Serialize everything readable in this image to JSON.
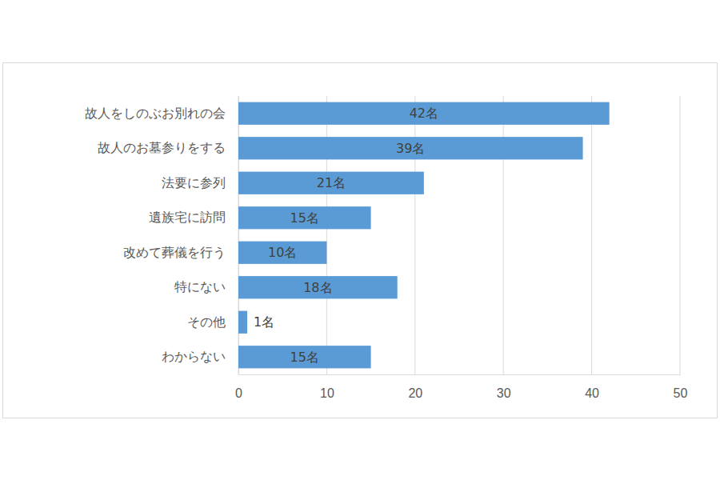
{
  "chart_data": {
    "type": "bar",
    "orientation": "horizontal",
    "categories": [
      "故人をしのぶお別れの会",
      "故人のお墓参りをする",
      "法要に参列",
      "遺族宅に訪問",
      "改めて葬儀を行う",
      "特にない",
      "その他",
      "わからない"
    ],
    "values": [
      42,
      39,
      21,
      15,
      10,
      18,
      1,
      15
    ],
    "value_labels": [
      "42名",
      "39名",
      "21名",
      "15名",
      "10名",
      "18名",
      "1名",
      "15名"
    ],
    "data_labels": true,
    "color": "#5b9bd5",
    "xlim": [
      0,
      50
    ],
    "xticks": [
      0,
      10,
      20,
      30,
      40,
      50
    ],
    "grid": true
  }
}
